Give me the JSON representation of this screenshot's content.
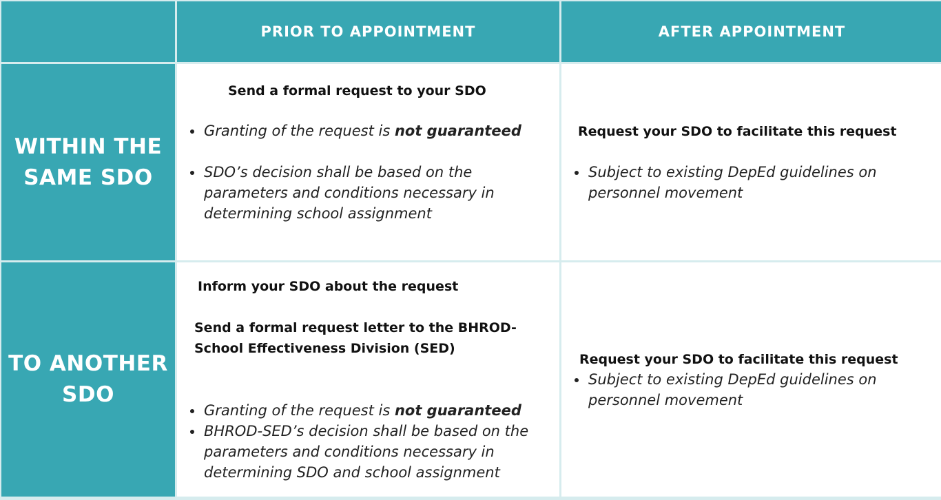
{
  "header": {
    "col_prior": "PRIOR TO APPOINTMENT",
    "col_after": "AFTER APPOINTMENT"
  },
  "rows": [
    {
      "label_line1": "WITHIN THE",
      "label_line2": "SAME SDO",
      "prior": {
        "title": "Send a formal request to your SDO",
        "bullet1_pre": "Granting of the request is ",
        "bullet1_emph": "not guaranteed",
        "bullet2": "SDO’s decision shall be based on the parameters and conditions necessary in determining school assignment"
      },
      "after": {
        "title": "Request your SDO to facilitate this request",
        "bullet1": "Subject to existing DepEd guidelines on personnel movement"
      }
    },
    {
      "label_line1": "TO ANOTHER",
      "label_line2": "SDO",
      "prior": {
        "title1": "Inform your SDO about the request",
        "title2": "Send a formal request letter to the BHROD-School Effectiveness Division (SED)",
        "bullet1_pre": "Granting of the request is ",
        "bullet1_emph": "not guaranteed",
        "bullet2": "BHROD-SED’s decision shall be based on the parameters and conditions necessary in determining SDO and school assignment"
      },
      "after": {
        "title": "Request your SDO to facilitate this request",
        "bullet1": "Subject to existing DepEd guidelines on personnel movement"
      }
    }
  ]
}
